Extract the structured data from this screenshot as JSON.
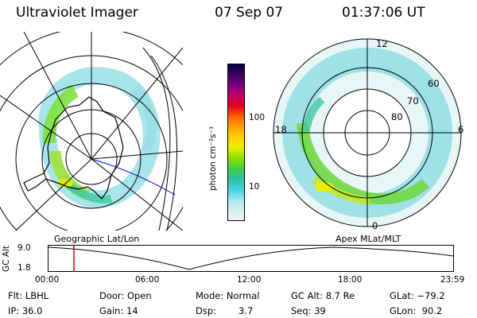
{
  "header": {
    "title": "Ultraviolet Imager",
    "date": "07 Sep 07",
    "time": "01:37:06 UT"
  },
  "colorbar": {
    "label": "photon cm⁻²s⁻¹",
    "ticks": [
      "100",
      "10"
    ],
    "scale": "log",
    "colors": [
      "#000040",
      "#400060",
      "#7a0080",
      "#c00060",
      "#e00020",
      "#ff6000",
      "#ffa000",
      "#ffd000",
      "#e8f000",
      "#90e000",
      "#40d040",
      "#30c0a0",
      "#40d0e0",
      "#a0e8f0",
      "#d8f0f0",
      "#f0f0f0"
    ]
  },
  "left_map": {
    "caption": "Geographic Lat/Lon"
  },
  "right_map": {
    "caption": "Apex MLat/MLT",
    "mlat_labels": [
      "60",
      "70",
      "80"
    ],
    "mlt_labels": {
      "top": "12",
      "left": "18",
      "right": "6",
      "bottom": "0"
    }
  },
  "altitude_plot": {
    "ylabel": "GC Alt",
    "y_ticks": [
      "9.0",
      "1.8"
    ],
    "x_ticks": [
      "00:00",
      "06:00",
      "12:00",
      "18:00",
      "23:59"
    ],
    "current_time_marker_color": "#d00000"
  },
  "info": {
    "filter": "Flt: LBHL",
    "ip": "IP: 36.0",
    "door": "Door: Open",
    "gain": "Gain: 14",
    "mode": "Mode: Normal",
    "dsp_label": "Dsp:",
    "dsp_value": "3.7",
    "gc_alt": "GC Alt: 8.7 Re",
    "seq": "Seq: 39",
    "glat": "GLat: −79.2",
    "glon": "GLon:  90.2"
  }
}
